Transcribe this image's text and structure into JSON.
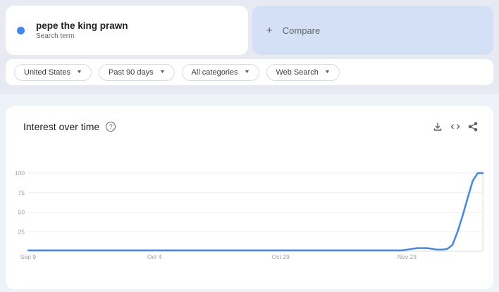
{
  "colors": {
    "page_bg": "#eef2f9",
    "header_bg": "#e7eaf3",
    "card_bg": "#ffffff",
    "compare_bg": "#d3e0f6",
    "accent_blue": "#4285f4",
    "text_dark": "#202124",
    "text_gray": "#5f6368",
    "axis_text": "#9aa0a6",
    "gridline": "#eceef1",
    "axis_line": "#dadce0",
    "pill_border": "#dadce0"
  },
  "icons": {
    "caret": "▼",
    "help_glyph": "?"
  },
  "term_card": {
    "term": "pepe the king prawn",
    "subtitle": "Search term"
  },
  "compare_card": {
    "plus": "+",
    "label": "Compare"
  },
  "filters": [
    {
      "label": "United States"
    },
    {
      "label": "Past 90 days"
    },
    {
      "label": "All categories"
    },
    {
      "label": "Web Search"
    }
  ],
  "chart_panel": {
    "title": "Interest over time",
    "actions": [
      "download",
      "embed",
      "share"
    ]
  },
  "chart_data": {
    "type": "line",
    "title": "Interest over time",
    "series_name": "pepe the king prawn",
    "line_color": "#4285f4",
    "ylim": [
      0,
      100
    ],
    "yticks": [
      100,
      75,
      50,
      25
    ],
    "x_days_total": 90,
    "xticks": [
      {
        "label": "Sep 9",
        "day": 0
      },
      {
        "label": "Oct 4",
        "day": 25
      },
      {
        "label": "Oct 29",
        "day": 50
      },
      {
        "label": "Nov 23",
        "day": 75
      }
    ],
    "values": [
      1,
      1,
      1,
      1,
      1,
      1,
      1,
      1,
      1,
      1,
      1,
      1,
      1,
      1,
      1,
      1,
      1,
      1,
      1,
      1,
      1,
      1,
      1,
      1,
      1,
      1,
      1,
      1,
      1,
      1,
      1,
      1,
      1,
      1,
      1,
      1,
      1,
      1,
      1,
      1,
      1,
      1,
      1,
      1,
      1,
      1,
      1,
      1,
      1,
      1,
      1,
      1,
      1,
      1,
      1,
      1,
      1,
      1,
      1,
      1,
      1,
      1,
      1,
      1,
      1,
      1,
      1,
      1,
      1,
      1,
      1,
      1,
      1,
      1,
      1,
      2,
      3,
      4,
      4,
      4,
      3,
      2,
      2,
      3,
      8,
      25,
      45,
      68,
      90,
      100,
      100
    ],
    "grid": true,
    "legend": "none"
  }
}
